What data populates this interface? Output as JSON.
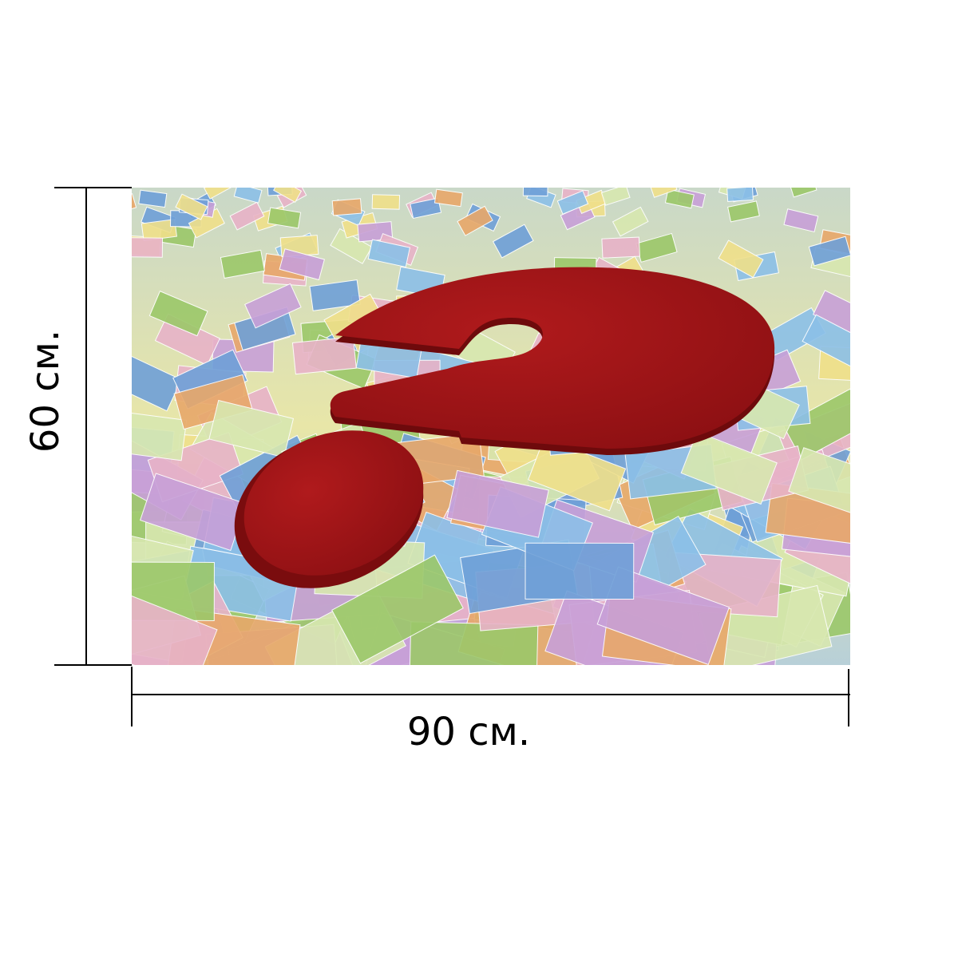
{
  "height_label": "60 см.",
  "width_label": "90 см."
}
